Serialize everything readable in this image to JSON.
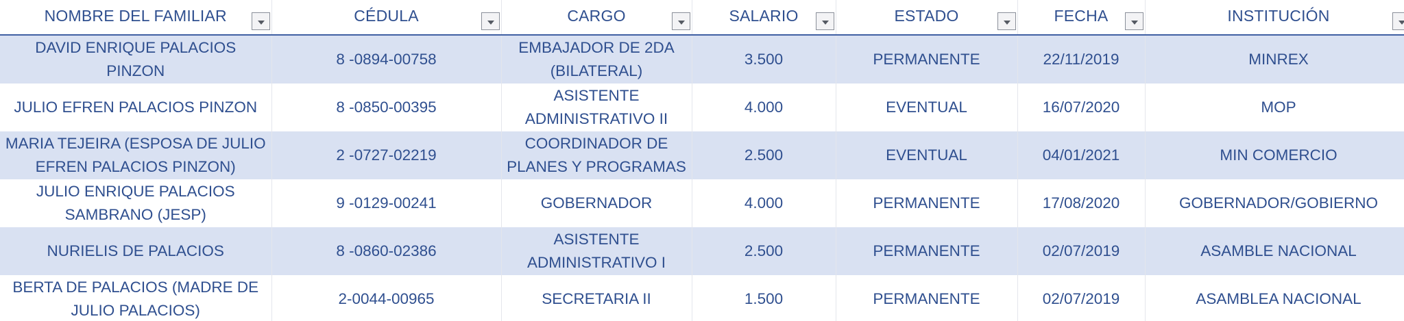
{
  "table": {
    "headers": [
      "NOMBRE DEL FAMILIAR",
      "CÉDULA",
      "CARGO",
      "SALARIO",
      "ESTADO",
      "FECHA",
      "INSTITUCIÓN"
    ],
    "rows": [
      [
        "DAVID ENRIQUE  PALACIOS PINZON",
        "8 -0894-00758",
        "EMBAJADOR DE 2DA (BILATERAL)",
        "3.500",
        "PERMANENTE",
        "22/11/2019",
        "MINREX"
      ],
      [
        "JULIO EFREN  PALACIOS PINZON",
        "8 -0850-00395",
        "ASISTENTE ADMINISTRATIVO II",
        "4.000",
        "EVENTUAL",
        "16/07/2020",
        "MOP"
      ],
      [
        "MARIA TEJEIRA  (ESPOSA DE JULIO EFREN PALACIOS PINZON)",
        "2 -0727-02219",
        "COORDINADOR DE PLANES Y PROGRAMAS",
        "2.500",
        "EVENTUAL",
        "04/01/2021",
        "MIN COMERCIO"
      ],
      [
        "JULIO ENRIQUE  PALACIOS SAMBRANO (JESP)",
        "9 -0129-00241",
        "GOBERNADOR",
        "4.000",
        "PERMANENTE",
        "17/08/2020",
        "GOBERNADOR/GOBIERNO"
      ],
      [
        "NURIELIS  DE PALACIOS",
        "8 -0860-02386",
        "ASISTENTE ADMINISTRATIVO I",
        "2.500",
        "PERMANENTE",
        "02/07/2019",
        "ASAMBLE NACIONAL"
      ],
      [
        "BERTA DE PALACIOS (MADRE DE JULIO PALACIOS)",
        "2-0044-00965",
        "SECRETARIA II",
        "1.500",
        "PERMANENTE",
        "02/07/2019",
        "ASAMBLEA NACIONAL"
      ]
    ]
  },
  "icons": {
    "filter": "dropdown-filter-icon"
  },
  "colors": {
    "text": "#2f4f8f",
    "band": "#d9e1f2",
    "header_rule": "#3f5fa3"
  }
}
